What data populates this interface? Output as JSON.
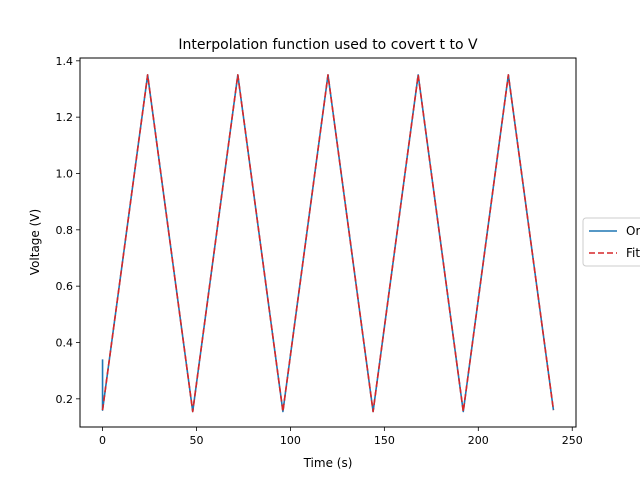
{
  "chart_data": {
    "type": "line",
    "title": "Interpolation function used to covert t to V",
    "xlabel": "Time (s)",
    "ylabel": "Voltage (V)",
    "xlim": [
      -12,
      252
    ],
    "ylim": [
      0.1,
      1.41
    ],
    "xticks": [
      0,
      50,
      100,
      150,
      200,
      250
    ],
    "yticks": [
      0.2,
      0.4,
      0.6,
      0.8,
      1.0,
      1.2,
      1.4
    ],
    "grid": false,
    "legend": {
      "placement": "center-right-outside",
      "clipped": true
    },
    "series": [
      {
        "name": "Original",
        "legend_visible_text": "Or",
        "color": "#1f77b4",
        "style": "solid",
        "x": [
          0,
          0,
          0,
          24,
          48,
          72,
          96,
          120,
          144,
          168,
          192,
          216,
          240
        ],
        "y": [
          0.34,
          0.18,
          0.16,
          1.35,
          0.155,
          1.35,
          0.155,
          1.35,
          0.155,
          1.35,
          0.155,
          1.35,
          0.16
        ]
      },
      {
        "name": "Fit",
        "legend_visible_text": "Fit",
        "color": "#d62728",
        "style": "dashed",
        "x": [
          0,
          24,
          48,
          72,
          96,
          120,
          144,
          168,
          192,
          216,
          240
        ],
        "y": [
          0.16,
          1.35,
          0.155,
          1.35,
          0.155,
          1.35,
          0.155,
          1.35,
          0.155,
          1.35,
          0.16
        ]
      }
    ]
  }
}
